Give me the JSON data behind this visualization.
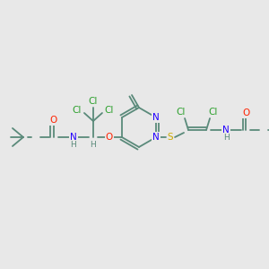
{
  "bg_color": "#e8e8e8",
  "bond_color": "#5a8a7a",
  "atom_colors": {
    "O": "#ff2200",
    "N": "#2200ff",
    "S": "#ccaa00",
    "Cl": "#2ca02c",
    "H": "#5a8a7a",
    "C": "#5a8a7a"
  },
  "scale": 1.0
}
